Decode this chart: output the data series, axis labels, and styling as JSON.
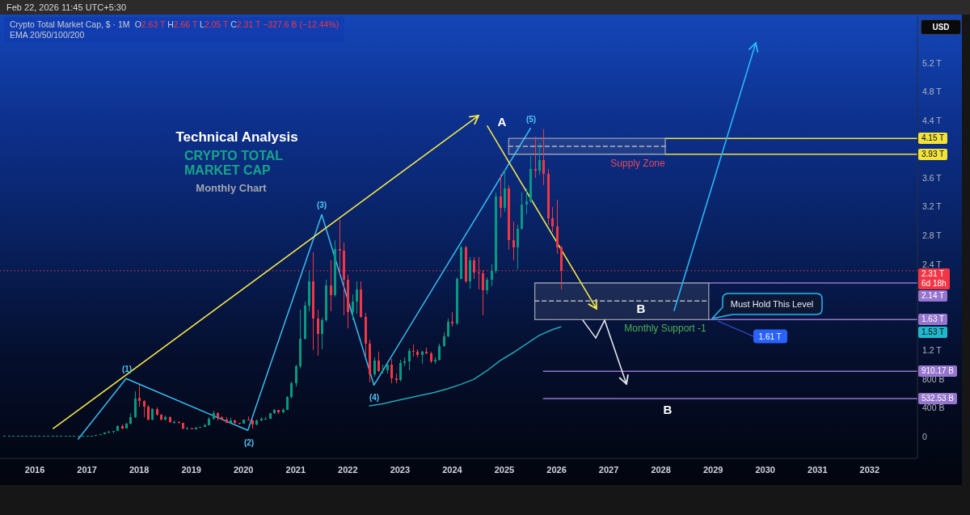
{
  "chart_data": {
    "type": "candlestick",
    "title": "Crypto Total Market Cap, $ · 1M",
    "subtitle": "O2.63 T H2.66 T L2.05 T C2.31 T −327.6 B (−12.44%)",
    "ylabel": "USD",
    "x": [
      "2015-06",
      "2015-07",
      "2015-08",
      "2015-09",
      "2015-10",
      "2015-11",
      "2015-12",
      "2016-01",
      "2016-02",
      "2016-03",
      "2016-04",
      "2016-05",
      "2016-06",
      "2016-07",
      "2016-08",
      "2016-09",
      "2016-10",
      "2016-11",
      "2016-12",
      "2017-01",
      "2017-02",
      "2017-03",
      "2017-04",
      "2017-05",
      "2017-06",
      "2017-07",
      "2017-08",
      "2017-09",
      "2017-10",
      "2017-11",
      "2017-12",
      "2018-01",
      "2018-02",
      "2018-03",
      "2018-04",
      "2018-05",
      "2018-06",
      "2018-07",
      "2018-08",
      "2018-09",
      "2018-10",
      "2018-11",
      "2018-12",
      "2019-01",
      "2019-02",
      "2019-03",
      "2019-04",
      "2019-05",
      "2019-06",
      "2019-07",
      "2019-08",
      "2019-09",
      "2019-10",
      "2019-11",
      "2019-12",
      "2020-01",
      "2020-02",
      "2020-03",
      "2020-04",
      "2020-05",
      "2020-06",
      "2020-07",
      "2020-08",
      "2020-09",
      "2020-10",
      "2020-11",
      "2020-12",
      "2021-01",
      "2021-02",
      "2021-03",
      "2021-04",
      "2021-05",
      "2021-06",
      "2021-07",
      "2021-08",
      "2021-09",
      "2021-10",
      "2021-11",
      "2021-12",
      "2022-01",
      "2022-02",
      "2022-03",
      "2022-04",
      "2022-05",
      "2022-06",
      "2022-07",
      "2022-08",
      "2022-09",
      "2022-10",
      "2022-11",
      "2022-12",
      "2023-01",
      "2023-02",
      "2023-03",
      "2023-04",
      "2023-05",
      "2023-06",
      "2023-07",
      "2023-08",
      "2023-09",
      "2023-10",
      "2023-11",
      "2023-12",
      "2024-01",
      "2024-02",
      "2024-03",
      "2024-04",
      "2024-05",
      "2024-06",
      "2024-07",
      "2024-08",
      "2024-09",
      "2024-10",
      "2024-11",
      "2024-12",
      "2025-01",
      "2025-02",
      "2025-03",
      "2025-04",
      "2025-05",
      "2025-06",
      "2025-07",
      "2025-08",
      "2025-09",
      "2025-10",
      "2025-11",
      "2025-12",
      "2026-01",
      "2026-02"
    ],
    "ohlc": [
      [
        10000000000.0,
        10000000000.0,
        10000000000.0,
        10000000000.0
      ],
      [
        10000000000.0,
        10000000000.0,
        10000000000.0,
        10000000000.0
      ],
      [
        10000000000.0,
        10000000000.0,
        10000000000.0,
        10000000000.0
      ],
      [
        10000000000.0,
        10000000000.0,
        10000000000.0,
        10000000000.0
      ],
      [
        10000000000.0,
        10000000000.0,
        10000000000.0,
        10000000000.0
      ],
      [
        10000000000.0,
        10000000000.0,
        10000000000.0,
        10000000000.0
      ],
      [
        10000000000.0,
        10000000000.0,
        10000000000.0,
        10000000000.0
      ],
      [
        10000000000.0,
        10000000000.0,
        10000000000.0,
        10000000000.0
      ],
      [
        10000000000.0,
        10000000000.0,
        10000000000.0,
        10000000000.0
      ],
      [
        10000000000.0,
        10000000000.0,
        10000000000.0,
        10000000000.0
      ],
      [
        10000000000.0,
        10000000000.0,
        10000000000.0,
        10000000000.0
      ],
      [
        10000000000.0,
        10000000000.0,
        10000000000.0,
        10000000000.0
      ],
      [
        10000000000.0,
        10000000000.0,
        10000000000.0,
        10000000000.0
      ],
      [
        10000000000.0,
        10000000000.0,
        10000000000.0,
        10000000000.0
      ],
      [
        10000000000.0,
        10000000000.0,
        10000000000.0,
        10000000000.0
      ],
      [
        10000000000.0,
        10000000000.0,
        10000000000.0,
        10000000000.0
      ],
      [
        10000000000.0,
        10000000000.0,
        10000000000.0,
        10000000000.0
      ],
      [
        10000000000.0,
        10000000000.0,
        10000000000.0,
        10000000000.0
      ],
      [
        10000000000.0,
        20000000000.0,
        10000000000.0,
        20000000000.0
      ],
      [
        20000000000.0,
        20000000000.0,
        20000000000.0,
        20000000000.0
      ],
      [
        20000000000.0,
        20000000000.0,
        20000000000.0,
        20000000000.0
      ],
      [
        20000000000.0,
        30000000000.0,
        20000000000.0,
        30000000000.0
      ],
      [
        30000000000.0,
        40000000000.0,
        30000000000.0,
        40000000000.0
      ],
      [
        40000000000.0,
        60000000000.0,
        40000000000.0,
        60000000000.0
      ],
      [
        60000000000.0,
        80000000000.0,
        50000000000.0,
        70000000000.0
      ],
      [
        70000000000.0,
        80000000000.0,
        50000000000.0,
        80000000000.0
      ],
      [
        80000000000.0,
        160000000000.0,
        80000000000.0,
        150000000000.0
      ],
      [
        150000000000.0,
        170000000000.0,
        110000000000.0,
        120000000000.0
      ],
      [
        120000000000.0,
        190000000000.0,
        120000000000.0,
        180000000000.0
      ],
      [
        180000000000.0,
        330000000000.0,
        170000000000.0,
        270000000000.0
      ],
      [
        270000000000.0,
        630000000000.0,
        260000000000.0,
        530000000000.0
      ],
      [
        540000000000.0,
        720000000000.0,
        420000000000.0,
        500000000000.0
      ],
      [
        500000000000.0,
        510000000000.0,
        270000000000.0,
        420000000000.0
      ],
      [
        420000000000.0,
        440000000000.0,
        230000000000.0,
        240000000000.0
      ],
      [
        240000000000.0,
        400000000000.0,
        230000000000.0,
        390000000000.0
      ],
      [
        390000000000.0,
        410000000000.0,
        300000000000.0,
        310000000000.0
      ],
      [
        310000000000.0,
        320000000000.0,
        230000000000.0,
        240000000000.0
      ],
      [
        240000000000.0,
        300000000000.0,
        230000000000.0,
        270000000000.0
      ],
      [
        270000000000.0,
        280000000000.0,
        190000000000.0,
        210000000000.0
      ],
      [
        210000000000.0,
        230000000000.0,
        180000000000.0,
        210000000000.0
      ],
      [
        210000000000.0,
        220000000000.0,
        180000000000.0,
        190000000000.0
      ],
      [
        190000000000.0,
        200000000000.0,
        110000000000.0,
        120000000000.0
      ],
      [
        120000000000.0,
        140000000000.0,
        100000000000.0,
        120000000000.0
      ],
      [
        120000000000.0,
        130000000000.0,
        110000000000.0,
        110000000000.0
      ],
      [
        110000000000.0,
        140000000000.0,
        110000000000.0,
        130000000000.0
      ],
      [
        130000000000.0,
        140000000000.0,
        130000000000.0,
        140000000000.0
      ],
      [
        140000000000.0,
        180000000000.0,
        140000000000.0,
        160000000000.0
      ],
      [
        160000000000.0,
        270000000000.0,
        160000000000.0,
        250000000000.0
      ],
      [
        250000000000.0,
        360000000000.0,
        240000000000.0,
        330000000000.0
      ],
      [
        330000000000.0,
        340000000000.0,
        230000000000.0,
        270000000000.0
      ],
      [
        270000000000.0,
        290000000000.0,
        230000000000.0,
        240000000000.0
      ],
      [
        240000000000.0,
        270000000000.0,
        190000000000.0,
        200000000000.0
      ],
      [
        200000000000.0,
        260000000000.0,
        190000000000.0,
        230000000000.0
      ],
      [
        230000000000.0,
        240000000000.0,
        180000000000.0,
        190000000000.0
      ],
      [
        190000000000.0,
        200000000000.0,
        170000000000.0,
        180000000000.0
      ],
      [
        180000000000.0,
        240000000000.0,
        180000000000.0,
        240000000000.0
      ],
      [
        240000000000.0,
        290000000000.0,
        230000000000.0,
        230000000000.0
      ],
      [
        230000000000.0,
        240000000000.0,
        120000000000.0,
        170000000000.0
      ],
      [
        170000000000.0,
        240000000000.0,
        160000000000.0,
        230000000000.0
      ],
      [
        230000000000.0,
        270000000000.0,
        220000000000.0,
        250000000000.0
      ],
      [
        250000000000.0,
        270000000000.0,
        240000000000.0,
        250000000000.0
      ],
      [
        250000000000.0,
        330000000000.0,
        250000000000.0,
        330000000000.0
      ],
      [
        330000000000.0,
        390000000000.0,
        320000000000.0,
        370000000000.0
      ],
      [
        370000000000.0,
        380000000000.0,
        320000000000.0,
        340000000000.0
      ],
      [
        340000000000.0,
        400000000000.0,
        330000000000.0,
        380000000000.0
      ],
      [
        380000000000.0,
        570000000000.0,
        380000000000.0,
        550000000000.0
      ],
      [
        550000000000.0,
        770000000000.0,
        530000000000.0,
        750000000000.0
      ],
      [
        750000000000.0,
        1000000000000.0,
        700000000000.0,
        980000000000.0
      ],
      [
        980000000000.0,
        1770000000000.0,
        950000000000.0,
        1360000000000.0
      ],
      [
        1360000000000.0,
        1880000000000.0,
        1350000000000.0,
        1820000000000.0
      ],
      [
        1820000000000.0,
        2310000000000.0,
        1750000000000.0,
        2160000000000.0
      ],
      [
        2160000000000.0,
        2570000000000.0,
        1210000000000.0,
        1640000000000.0
      ],
      [
        1640000000000.0,
        1770000000000.0,
        1130000000000.0,
        1430000000000.0
      ],
      [
        1430000000000.0,
        1660000000000.0,
        1220000000000.0,
        1620000000000.0
      ],
      [
        1620000000000.0,
        2180000000000.0,
        1600000000000.0,
        2110000000000.0
      ],
      [
        2110000000000.0,
        2460000000000.0,
        1750000000000.0,
        1970000000000.0
      ],
      [
        1970000000000.0,
        2740000000000.0,
        1950000000000.0,
        2610000000000.0
      ],
      [
        2610000000000.0,
        3020000000000.0,
        2260000000000.0,
        2590000000000.0
      ],
      [
        2590000000000.0,
        2700000000000.0,
        1690000000000.0,
        2180000000000.0
      ],
      [
        2180000000000.0,
        2250000000000.0,
        1510000000000.0,
        1730000000000.0
      ],
      [
        1730000000000.0,
        1980000000000.0,
        1620000000000.0,
        1880000000000.0
      ],
      [
        1880000000000.0,
        2160000000000.0,
        1710000000000.0,
        2050000000000.0
      ],
      [
        2050000000000.0,
        2160000000000.0,
        1660000000000.0,
        1670000000000.0
      ],
      [
        1670000000000.0,
        1720000000000.0,
        1120000000000.0,
        1300000000000.0
      ],
      [
        1300000000000.0,
        1350000000000.0,
        760000000000.0,
        870000000000.0
      ],
      [
        870000000000.0,
        1110000000000.0,
        830000000000.0,
        1060000000000.0
      ],
      [
        1060000000000.0,
        1180000000000.0,
        900000000000.0,
        910000000000.0
      ],
      [
        910000000000.0,
        1000000000000.0,
        880000000000.0,
        930000000000.0
      ],
      [
        930000000000.0,
        1030000000000.0,
        880000000000.0,
        1000000000000.0
      ],
      [
        1000000000000.0,
        1080000000000.0,
        750000000000.0,
        810000000000.0
      ],
      [
        810000000000.0,
        880000000000.0,
        750000000000.0,
        790000000000.0
      ],
      [
        790000000000.0,
        1070000000000.0,
        770000000000.0,
        1030000000000.0
      ],
      [
        1030000000000.0,
        1100000000000.0,
        980000000000.0,
        1050000000000.0
      ],
      [
        1050000000000.0,
        1230000000000.0,
        920000000000.0,
        1190000000000.0
      ],
      [
        1190000000000.0,
        1280000000000.0,
        1120000000000.0,
        1180000000000.0
      ],
      [
        1180000000000.0,
        1220000000000.0,
        1100000000000.0,
        1140000000000.0
      ],
      [
        1140000000000.0,
        1200000000000.0,
        1020000000000.0,
        1180000000000.0
      ],
      [
        1180000000000.0,
        1240000000000.0,
        1150000000000.0,
        1160000000000.0
      ],
      [
        1160000000000.0,
        1180000000000.0,
        1030000000000.0,
        1050000000000.0
      ],
      [
        1050000000000.0,
        1100000000000.0,
        1020000000000.0,
        1070000000000.0
      ],
      [
        1070000000000.0,
        1300000000000.0,
        1060000000000.0,
        1260000000000.0
      ],
      [
        1260000000000.0,
        1450000000000.0,
        1250000000000.0,
        1400000000000.0
      ],
      [
        1400000000000.0,
        1650000000000.0,
        1390000000000.0,
        1600000000000.0
      ],
      [
        1600000000000.0,
        1740000000000.0,
        1530000000000.0,
        1580000000000.0
      ],
      [
        1580000000000.0,
        2220000000000.0,
        1550000000000.0,
        2200000000000.0
      ],
      [
        2200000000000.0,
        2660000000000.0,
        2200000000000.0,
        2630000000000.0
      ],
      [
        2630000000000.0,
        2660000000000.0,
        2140000000000.0,
        2160000000000.0
      ],
      [
        2160000000000.0,
        2500000000000.0,
        2060000000000.0,
        2450000000000.0
      ],
      [
        2450000000000.0,
        2500000000000.0,
        2200000000000.0,
        2290000000000.0
      ],
      [
        2290000000000.0,
        2500000000000.0,
        2050000000000.0,
        2280000000000.0
      ],
      [
        2280000000000.0,
        2320000000000.0,
        1690000000000.0,
        2040000000000.0
      ],
      [
        2040000000000.0,
        2220000000000.0,
        1980000000000.0,
        2190000000000.0
      ],
      [
        2190000000000.0,
        2400000000000.0,
        2100000000000.0,
        2310000000000.0
      ],
      [
        2310000000000.0,
        3400000000000.0,
        2280000000000.0,
        3340000000000.0
      ],
      [
        3340000000000.0,
        3650000000000.0,
        3050000000000.0,
        3190000000000.0
      ],
      [
        3190000000000.0,
        3710000000000.0,
        3130000000000.0,
        3450000000000.0
      ],
      [
        3450000000000.0,
        3500000000000.0,
        2600000000000.0,
        2740000000000.0
      ],
      [
        2740000000000.0,
        2990000000000.0,
        2460000000000.0,
        2630000000000.0
      ],
      [
        2630000000000.0,
        2950000000000.0,
        2330000000000.0,
        2890000000000.0
      ],
      [
        2890000000000.0,
        3400000000000.0,
        2880000000000.0,
        3230000000000.0
      ],
      [
        3230000000000.0,
        3450000000000.0,
        3100000000000.0,
        3270000000000.0
      ],
      [
        3270000000000.0,
        3900000000000.0,
        3250000000000.0,
        3730000000000.0
      ],
      [
        3730000000000.0,
        4170000000000.0,
        3600000000000.0,
        3700000000000.0
      ],
      [
        3700000000000.0,
        4090000000000.0,
        3650000000000.0,
        3850000000000.0
      ],
      [
        3850000000000.0,
        4280000000000.0,
        3500000000000.0,
        3660000000000.0
      ],
      [
        3660000000000.0,
        3720000000000.0,
        2950000000000.0,
        3040000000000.0
      ],
      [
        3040000000000.0,
        3200000000000.0,
        2850000000000.0,
        2930000000000.0
      ],
      [
        2930000000000.0,
        3300000000000.0,
        2550000000000.0,
        2630000000000.0
      ],
      [
        2630000000000.0,
        2660000000000.0,
        2050000000000.0,
        2310000000000.0
      ]
    ],
    "series": [
      {
        "type": "line",
        "color": "#1fa8b8",
        "x": [
          "2022-06",
          "2022-09",
          "2022-12",
          "2023-03",
          "2023-06",
          "2023-09",
          "2023-12",
          "2024-03",
          "2024-06",
          "2024-09",
          "2024-12",
          "2025-03",
          "2025-06",
          "2025-09",
          "2025-12",
          "2026-02"
        ],
        "values": [
          430000000000.0,
          460000000000.0,
          500000000000.0,
          540000000000.0,
          580000000000.0,
          620000000000.0,
          670000000000.0,
          730000000000.0,
          800000000000.0,
          920000000000.0,
          1060000000000.0,
          1170000000000.0,
          1290000000000.0,
          1410000000000.0,
          1490000000000.0,
          1530000000000.0
        ]
      },
      {
        "type": "line",
        "color": "#38bdf0",
        "x": [
          "2016-11",
          "2017-10",
          "2020-02",
          "2021-07",
          "2022-07",
          "2025-07"
        ],
        "values": [
          -30000000000.0,
          810000000000.0,
          90000000000.0,
          3090000000000.0,
          720000000000.0,
          4290000000000.0
        ]
      },
      {
        "type": "line",
        "color": "#b2b5be",
        "line_style": "dashed",
        "x": [
          "2025-02",
          "2028-02"
        ],
        "values": [
          4040000000000.0,
          4040000000000.0
        ],
        "lower": [
          3930000000000.0,
          3930000000000.0
        ],
        "upper": [
          4150000000000.0,
          4150000000000.0
        ]
      },
      {
        "type": "line",
        "color": "#b2b5be",
        "line_style": "dashed",
        "x": [
          "2025-08",
          "2028-12"
        ],
        "values": [
          1890000000000.0,
          1890000000000.0
        ],
        "lower": [
          1630000000000.0,
          1630000000000.0
        ],
        "upper": [
          2140000000000.0,
          2140000000000.0
        ]
      },
      {
        "type": "line",
        "color": "#f2e23c",
        "x": [
          "2028-02",
          "2032-12"
        ],
        "values": [
          4150000000000.0,
          4150000000000.0
        ],
        "value_labels": [
          null,
          "4.15 T"
        ]
      },
      {
        "type": "line",
        "color": "#f2e23c",
        "x": [
          "2028-02",
          "2032-12"
        ],
        "values": [
          3930000000000.0,
          3930000000000.0
        ],
        "value_labels": [
          null,
          "3.93 T"
        ]
      },
      {
        "type": "line",
        "color": "#9575cd",
        "x": [
          "2028-12",
          "2032-12"
        ],
        "values": [
          2140000000000.0,
          2140000000000.0
        ],
        "value_labels": [
          null,
          "2.14 T"
        ]
      },
      {
        "type": "line",
        "color": "#9575cd",
        "x": [
          "2028-12",
          "2032-12"
        ],
        "values": [
          1630000000000.0,
          1630000000000.0
        ],
        "value_labels": [
          null,
          "1.63 T"
        ]
      },
      {
        "type": "line",
        "color": "#9575cd",
        "x": [
          "2025-10",
          "2032-12"
        ],
        "values": [
          910170000000.0,
          910170000000.0
        ],
        "value_labels": [
          null,
          "910.17 B"
        ]
      },
      {
        "type": "line",
        "color": "#9575cd",
        "x": [
          "2025-10",
          "2032-12"
        ],
        "values": [
          532530000000.0,
          532530000000.0
        ],
        "value_labels": [
          null,
          "532.53 B"
        ]
      }
    ],
    "ref_lines": [
      {
        "axis": "y",
        "value": 2310000000000.0,
        "label": "2.31 T\n6d 18h",
        "color": "#f23645",
        "line_style": "dotted"
      }
    ],
    "xlim": [
      "2015-05",
      "2032-12"
    ],
    "ylim": [
      -300000000000.0,
      5850000000000.0
    ],
    "xticks": [
      "2016",
      "2017",
      "2018",
      "2019",
      "2020",
      "2021",
      "2022",
      "2023",
      "2024",
      "2025",
      "2026",
      "2027",
      "2028",
      "2029",
      "2030",
      "2031",
      "2032"
    ],
    "yticks": [
      0,
      {
        "value": 400000000000.0,
        "label": "400 B"
      },
      {
        "value": 800000000000.0,
        "label": "800 B"
      },
      {
        "value": 1200000000000.0,
        "label": "1.2 T"
      },
      {
        "value": 2400000000000.0,
        "label": "2.4 T"
      },
      {
        "value": 2800000000000.0,
        "label": "2.8 T"
      },
      {
        "value": 3200000000000.0,
        "label": "3.2 T"
      },
      {
        "value": 3600000000000.0,
        "label": "3.6 T"
      },
      {
        "value": 4400000000000.0,
        "label": "4.4 T"
      },
      {
        "value": 4800000000000.0,
        "label": "4.8 T"
      },
      {
        "value": 5200000000000.0,
        "label": "5.2 T"
      }
    ],
    "annotations": [
      "Feb 22, 2026 11:45 UTC+5:30",
      "EMA 20/50/100/200",
      "Technical Analysis",
      "CRYPTO TOTAL MARKET CAP",
      "Monthly Chart",
      "(1)",
      "(2)",
      "(3)",
      "(4)",
      "(5)",
      "A",
      "B",
      "B",
      "Supply Zone",
      "Monthly Support -1",
      "Must Hold This Level",
      {
        "text": "1.61 T",
        "x": "2029-02",
        "y": 1610000000000.0
      },
      "1.53 T"
    ]
  }
}
